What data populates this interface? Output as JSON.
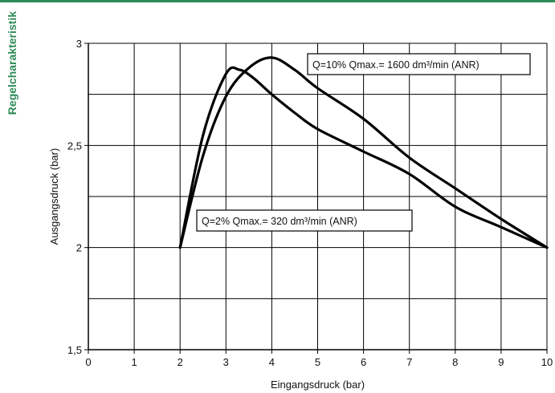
{
  "page": {
    "side_title": "Regelcharakteristik",
    "accent_color": "#2e8b57"
  },
  "chart_data": {
    "type": "line",
    "title": "",
    "xlabel": "Eingangsdruck (bar)",
    "ylabel": "Ausgangsdruck (bar)",
    "xlim": [
      0,
      10
    ],
    "ylim": [
      1.5,
      3
    ],
    "xticks": [
      "0",
      "1",
      "2",
      "3",
      "4",
      "5",
      "6",
      "7",
      "8",
      "9",
      "10"
    ],
    "yticks": [
      "1,5",
      "2",
      "2,5",
      "3"
    ],
    "grid": true,
    "series": [
      {
        "name": "Q=10% Qmax.= 1600 dm³/min (ANR)",
        "x": [
          2,
          2.5,
          3,
          3.5,
          4,
          4.5,
          5,
          6,
          7,
          8,
          9,
          10
        ],
        "y": [
          2.0,
          2.45,
          2.74,
          2.88,
          2.93,
          2.87,
          2.78,
          2.63,
          2.44,
          2.29,
          2.14,
          2.0
        ]
      },
      {
        "name": "Q=2% Qmax.= 320 dm³/min (ANR)",
        "x": [
          2,
          2.5,
          3,
          3.3,
          3.6,
          4,
          4.5,
          5,
          6,
          7,
          8,
          9,
          10
        ],
        "y": [
          2.0,
          2.55,
          2.85,
          2.87,
          2.83,
          2.75,
          2.66,
          2.58,
          2.47,
          2.36,
          2.2,
          2.1,
          2.0
        ]
      }
    ]
  }
}
